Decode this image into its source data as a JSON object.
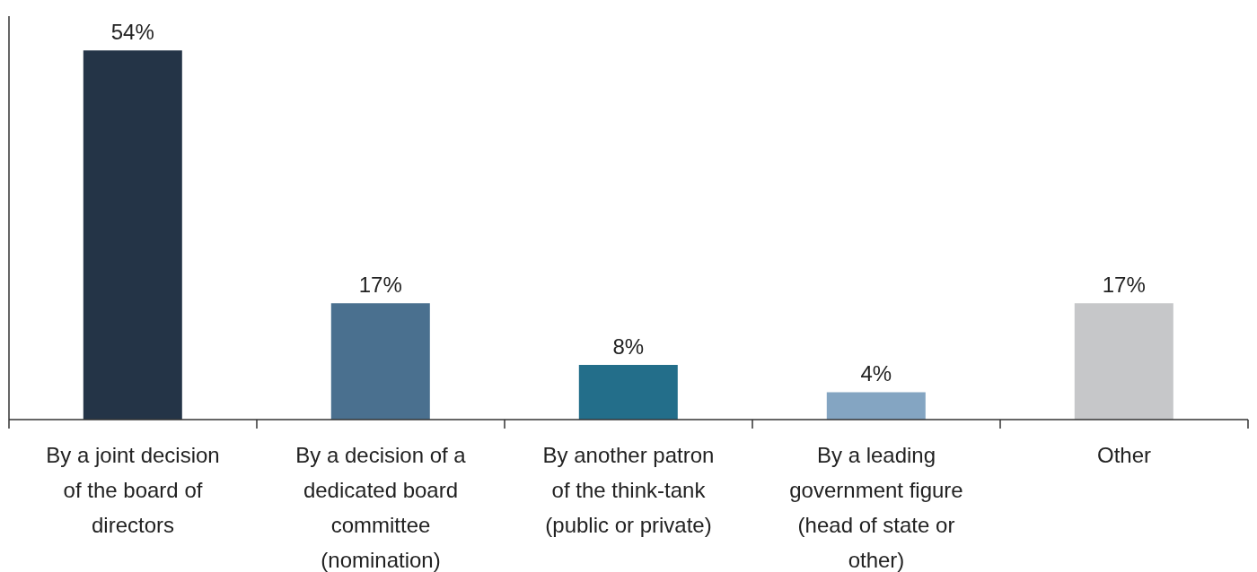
{
  "chart_data": {
    "type": "bar",
    "categories": [
      "By a joint decision of the board of directors",
      "By a decision of a dedicated board committee (nomination)",
      "By another patron of the think-tank (public or private)",
      "By a leading government figure (head of state or other)",
      "Other"
    ],
    "values": [
      54,
      17,
      8,
      4,
      17
    ],
    "colors": [
      "#243447",
      "#4a708f",
      "#236e8a",
      "#84a5c2",
      "#c6c7c9"
    ],
    "value_labels": [
      "54%",
      "17%",
      "8%",
      "4%",
      "17%"
    ],
    "ylim": [
      0,
      59
    ],
    "tick_labels": "x",
    "grid": false,
    "legend": false
  }
}
